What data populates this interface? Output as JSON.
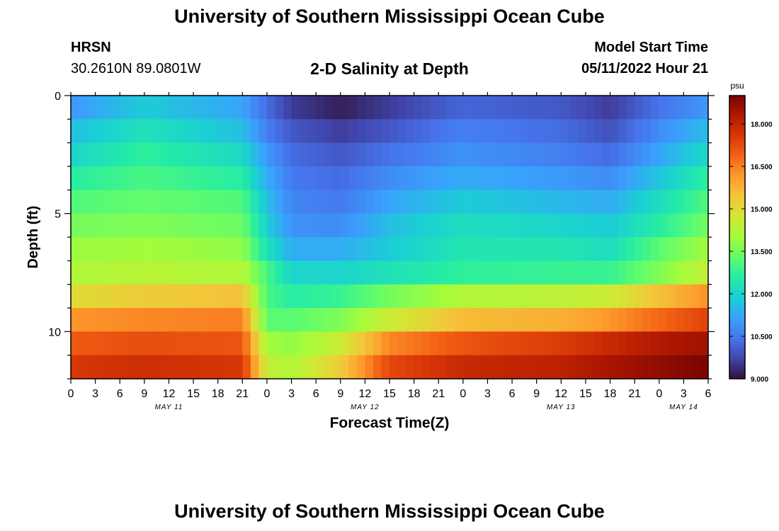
{
  "header": {
    "title": "University of Southern Mississippi Ocean Cube",
    "station": "HRSN",
    "coords": "30.2610N  89.0801W",
    "subtitle": "2-D Salinity at Depth",
    "start_label": "Model Start Time",
    "start_time": "05/11/2022 Hour 21"
  },
  "footer": {
    "title": "University of Southern Mississippi Ocean Cube"
  },
  "chart_data": {
    "type": "heatmap",
    "xlabel": "Forecast Time(Z)",
    "ylabel": "Depth (ft)",
    "x_tick_labels": [
      "0",
      "3",
      "6",
      "9",
      "12",
      "15",
      "18",
      "21",
      "0",
      "3",
      "6",
      "9",
      "12",
      "15",
      "18",
      "21",
      "0",
      "3",
      "6",
      "9",
      "12",
      "15",
      "18",
      "21",
      "0",
      "3",
      "6"
    ],
    "date_labels": [
      {
        "label": "MAY 11",
        "hour_index": 4
      },
      {
        "label": "MAY 12",
        "hour_index": 12
      },
      {
        "label": "MAY 13",
        "hour_index": 20
      },
      {
        "label": "MAY 14",
        "hour_index": 25
      }
    ],
    "y_tick_labels": [
      "0",
      "5",
      "10"
    ],
    "ylim": [
      0,
      12
    ],
    "x_range_hours": [
      0,
      78
    ],
    "colorbar": {
      "unit": "psu",
      "tick_labels": [
        "18.000",
        "16.500",
        "15.000",
        "13.500",
        "12.000",
        "10.500",
        "9.000"
      ],
      "range": [
        9.0,
        19.0
      ],
      "colors": [
        "#30123b",
        "#4145ab",
        "#4675ed",
        "#39a2fc",
        "#1bcfd4",
        "#24eca6",
        "#61fc6c",
        "#a4fc3b",
        "#d1e834",
        "#f3c63a",
        "#fe9b2d",
        "#f36315",
        "#d93806",
        "#b11901",
        "#7a0402"
      ]
    },
    "depth_layers_ft": [
      0.5,
      1.5,
      2.5,
      3.5,
      4.5,
      5.5,
      6.5,
      7.5,
      8.5,
      9.5,
      10.5,
      11.5
    ],
    "time_knots_hours": [
      0,
      9,
      21,
      24,
      27,
      33,
      39,
      48,
      60,
      66,
      72,
      78
    ],
    "salinity_psu": [
      [
        11.0,
        11.8,
        11.2,
        10.3,
        9.6,
        9.2,
        9.6,
        10.2,
        10.0,
        9.6,
        10.4,
        11.0
      ],
      [
        11.6,
        12.3,
        11.6,
        10.6,
        10.0,
        9.6,
        10.0,
        10.6,
        10.3,
        9.9,
        10.8,
        11.6
      ],
      [
        12.0,
        12.7,
        12.1,
        11.0,
        10.3,
        10.0,
        10.4,
        10.9,
        10.6,
        10.3,
        11.2,
        12.1
      ],
      [
        12.6,
        13.0,
        12.6,
        11.3,
        10.5,
        10.3,
        10.8,
        11.3,
        11.0,
        10.8,
        11.7,
        12.7
      ],
      [
        13.1,
        13.3,
        13.1,
        11.6,
        10.7,
        10.5,
        11.2,
        11.8,
        11.5,
        11.3,
        12.2,
        13.1
      ],
      [
        13.5,
        13.6,
        13.4,
        11.9,
        10.9,
        10.8,
        11.6,
        12.2,
        12.0,
        11.8,
        12.6,
        13.5
      ],
      [
        13.9,
        14.0,
        13.8,
        12.3,
        11.3,
        11.3,
        11.8,
        12.4,
        12.4,
        12.2,
        13.2,
        14.0
      ],
      [
        14.2,
        14.3,
        14.2,
        13.0,
        12.0,
        12.0,
        12.3,
        12.7,
        12.8,
        12.8,
        13.6,
        14.5
      ],
      [
        15.0,
        15.3,
        15.5,
        13.0,
        12.6,
        12.8,
        13.5,
        14.2,
        14.4,
        14.6,
        15.5,
        16.3
      ],
      [
        16.2,
        16.4,
        16.5,
        13.2,
        13.2,
        13.6,
        14.6,
        15.6,
        15.8,
        16.2,
        16.8,
        17.4
      ],
      [
        17.0,
        17.2,
        17.1,
        14.0,
        13.8,
        14.6,
        16.4,
        17.1,
        17.5,
        17.9,
        18.3,
        18.5
      ],
      [
        17.6,
        17.8,
        17.6,
        14.5,
        14.2,
        15.3,
        17.3,
        17.9,
        18.1,
        18.4,
        18.7,
        19.0
      ]
    ]
  }
}
